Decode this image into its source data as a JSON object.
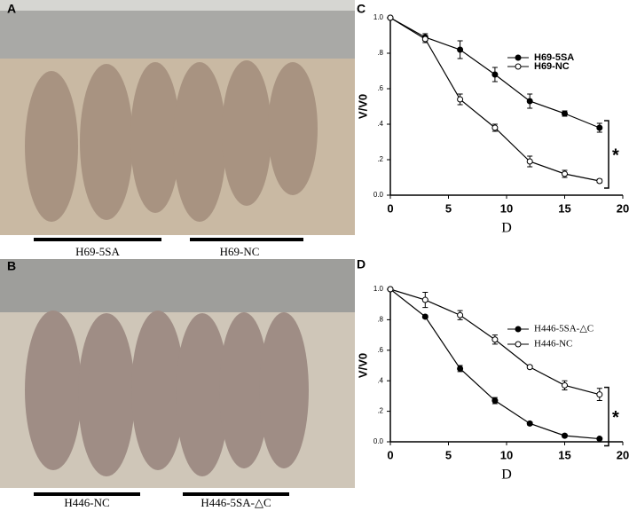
{
  "panel_labels": [
    "A",
    "B",
    "C",
    "D"
  ],
  "photos": [
    {
      "groups": [
        "H69-5SA",
        "H69-NC"
      ]
    },
    {
      "groups": [
        "H446-NC",
        "H446-5SA-△C"
      ]
    }
  ],
  "chart_data": [
    {
      "type": "line",
      "x_label": "D",
      "y_label": "V/V0",
      "annotation": "*",
      "legend": "upper right",
      "x": [
        0,
        3,
        6,
        9,
        12,
        15,
        18
      ],
      "series": [
        {
          "name": "H69-5SA",
          "color": "#000000",
          "marker": "filled",
          "values": [
            1.0,
            0.89,
            0.82,
            0.68,
            0.53,
            0.46,
            0.38
          ],
          "errors": [
            0,
            0.02,
            0.05,
            0.04,
            0.04,
            0.015,
            0.025
          ]
        },
        {
          "name": "H69-NC",
          "color": "#000000",
          "marker": "open",
          "values": [
            1.0,
            0.88,
            0.54,
            0.38,
            0.19,
            0.12,
            0.08
          ],
          "errors": [
            0,
            0.02,
            0.03,
            0.02,
            0.03,
            0.02,
            0.01
          ]
        }
      ],
      "xlim": [
        0,
        20
      ],
      "xticks": [
        0,
        5,
        10,
        15,
        20
      ],
      "ylim": [
        0,
        1
      ],
      "yticks": [
        {
          "value": 0,
          "label": "0.0"
        },
        {
          "value": 0.2,
          "label": ".2"
        },
        {
          "value": 0.4,
          "label": ".4"
        },
        {
          "value": 0.6,
          "label": ".6"
        },
        {
          "value": 0.8,
          "label": ".8"
        },
        {
          "value": 1,
          "label": "1.0"
        }
      ]
    },
    {
      "type": "line",
      "x_label": "D",
      "y_label": "V/V0",
      "annotation": "*",
      "legend": "upper right",
      "x": [
        0,
        3,
        6,
        9,
        12,
        15,
        18
      ],
      "series": [
        {
          "name": "H446-5SA-△C",
          "color": "#000000",
          "marker": "filled",
          "values": [
            1.0,
            0.82,
            0.48,
            0.27,
            0.12,
            0.04,
            0.02
          ],
          "errors": [
            0,
            0.01,
            0.02,
            0.02,
            0.01,
            0.01,
            0.005
          ]
        },
        {
          "name": "H446-NC",
          "color": "#000000",
          "marker": "open",
          "values": [
            1.0,
            0.93,
            0.83,
            0.67,
            0.49,
            0.37,
            0.31
          ],
          "errors": [
            0,
            0.05,
            0.03,
            0.03,
            0.01,
            0.03,
            0.04
          ]
        }
      ],
      "xlim": [
        0,
        20
      ],
      "xticks": [
        0,
        5,
        10,
        15,
        20
      ],
      "ylim": [
        0,
        1
      ],
      "yticks": [
        {
          "value": 0,
          "label": "0.0"
        },
        {
          "value": 0.2,
          "label": ".2"
        },
        {
          "value": 0.4,
          "label": ".4"
        },
        {
          "value": 0.6,
          "label": ".6"
        },
        {
          "value": 0.8,
          "label": ".8"
        },
        {
          "value": 1,
          "label": "1.0"
        }
      ]
    }
  ]
}
